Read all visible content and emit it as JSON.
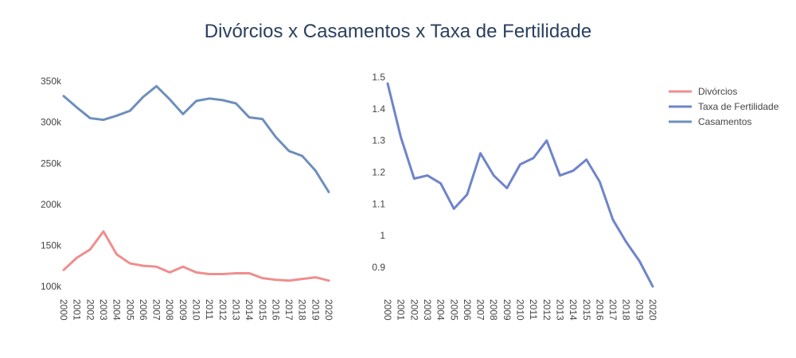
{
  "title": "Divórcios x Casamentos x Taxa de Fertilidade",
  "colors": {
    "divorcios": "#ee8e8e",
    "fertilidade": "#6f84cb",
    "casamentos": "#6e8fbc",
    "text": "#444444",
    "title": "#2a3f5f"
  },
  "chart_data": [
    {
      "type": "line",
      "x": [
        "2000",
        "2001",
        "2002",
        "2003",
        "2004",
        "2005",
        "2006",
        "2007",
        "2008",
        "2009",
        "2010",
        "2011",
        "2012",
        "2013",
        "2014",
        "2015",
        "2016",
        "2017",
        "2018",
        "2019",
        "2020"
      ],
      "ylim": [
        98000,
        355000
      ],
      "yticks": [
        100000,
        150000,
        200000,
        250000,
        300000,
        350000
      ],
      "ytick_labels": [
        "100k",
        "150k",
        "200k",
        "250k",
        "300k",
        "350k"
      ],
      "series": [
        {
          "name": "Divórcios",
          "color_key": "divorcios",
          "values": [
            120000,
            135000,
            145000,
            167000,
            139000,
            128000,
            125000,
            124000,
            117000,
            124000,
            117000,
            115000,
            115000,
            116000,
            116000,
            110000,
            108000,
            107000,
            109000,
            111000,
            107000
          ]
        },
        {
          "name": "Casamentos",
          "color_key": "casamentos",
          "values": [
            332000,
            318000,
            305000,
            303000,
            308000,
            314000,
            331000,
            344000,
            328000,
            310000,
            326000,
            329000,
            327000,
            323000,
            306000,
            304000,
            282000,
            265000,
            259000,
            241000,
            215000
          ]
        }
      ]
    },
    {
      "type": "line",
      "x": [
        "2000",
        "2001",
        "2002",
        "2003",
        "2004",
        "2005",
        "2006",
        "2007",
        "2008",
        "2009",
        "2010",
        "2011",
        "2012",
        "2013",
        "2014",
        "2015",
        "2016",
        "2017",
        "2018",
        "2019",
        "2020"
      ],
      "ylim": [
        0.835,
        1.5
      ],
      "yticks": [
        0.9,
        1,
        1.1,
        1.2,
        1.3,
        1.4,
        1.5
      ],
      "ytick_labels": [
        "0.9",
        "1",
        "1.1",
        "1.2",
        "1.3",
        "1.4",
        "1.5"
      ],
      "series": [
        {
          "name": "Taxa de Fertilidade",
          "color_key": "fertilidade",
          "values": [
            1.48,
            1.31,
            1.18,
            1.19,
            1.165,
            1.085,
            1.13,
            1.26,
            1.19,
            1.15,
            1.225,
            1.245,
            1.3,
            1.19,
            1.205,
            1.24,
            1.17,
            1.05,
            0.98,
            0.92,
            0.84
          ]
        }
      ]
    }
  ],
  "legend": {
    "placement": "top-right",
    "items": [
      {
        "label": "Divórcios",
        "color_key": "divorcios"
      },
      {
        "label": "Taxa de Fertilidade",
        "color_key": "fertilidade"
      },
      {
        "label": "Casamentos",
        "color_key": "casamentos"
      }
    ]
  }
}
